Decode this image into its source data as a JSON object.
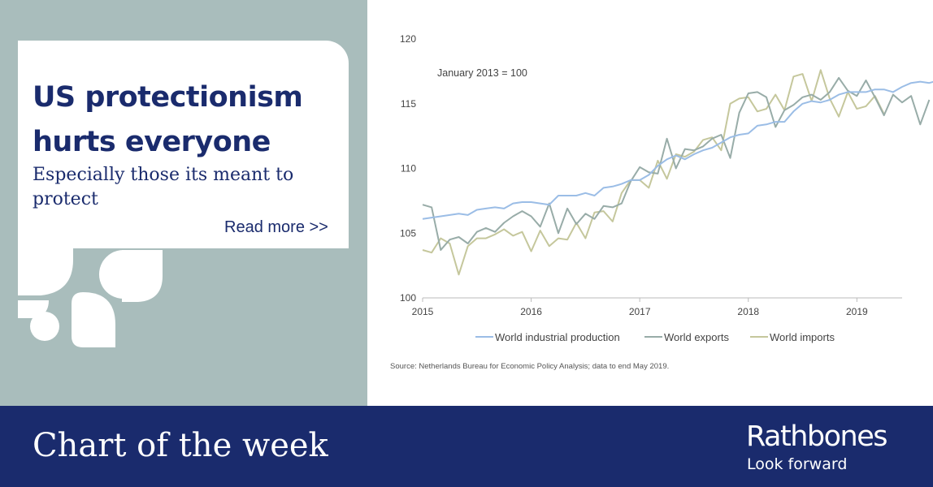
{
  "headline": "US protectionism hurts everyone",
  "subhead": "Especially those its meant to protect",
  "read_more": "Read more >>",
  "footer": {
    "title": "Chart of the week",
    "brand": "Rathbones",
    "tagline": "Look forward"
  },
  "source_note": "Source: Netherlands Bureau for Economic Policy Analysis; data to end May 2019.",
  "colors": {
    "navy": "#1a2b6d",
    "panel": "#a9bdbc"
  },
  "chart_data": {
    "type": "line",
    "annotation": "January 2013 = 100",
    "x_start": "2015-01",
    "x_end": "2019-05",
    "xlim": [
      "2015-01",
      "2019-06"
    ],
    "x_ticks": [
      "2015",
      "2016",
      "2017",
      "2018",
      "2019"
    ],
    "ylim": [
      100,
      120
    ],
    "y_ticks": [
      "100",
      "105",
      "110",
      "115",
      "120"
    ],
    "grid": false,
    "legend_position": "bottom",
    "series": [
      {
        "name": "World industrial production",
        "color": "#9bbde6",
        "values": [
          106.1,
          106.2,
          106.3,
          106.4,
          106.5,
          106.4,
          106.8,
          106.9,
          107.0,
          106.9,
          107.3,
          107.4,
          107.4,
          107.3,
          107.2,
          107.9,
          107.9,
          107.9,
          108.1,
          107.9,
          108.5,
          108.6,
          108.8,
          109.1,
          109.1,
          109.5,
          110.2,
          110.7,
          111.0,
          110.7,
          111.1,
          111.4,
          111.6,
          112.0,
          112.4,
          112.6,
          112.7,
          113.3,
          113.4,
          113.6,
          113.6,
          114.4,
          115.0,
          115.2,
          115.1,
          115.3,
          115.7,
          115.9,
          115.9,
          115.9,
          116.1,
          116.1,
          115.9,
          116.3,
          116.6,
          116.7,
          116.6,
          116.8,
          116.9,
          116.8,
          116.8,
          116.8,
          117.9,
          117.3,
          117.5
        ]
      },
      {
        "name": "World exports",
        "color": "#98aca8",
        "values": [
          107.2,
          107.0,
          103.7,
          104.5,
          104.7,
          104.2,
          105.1,
          105.4,
          105.1,
          105.8,
          106.3,
          106.7,
          106.3,
          105.5,
          107.3,
          105.0,
          106.9,
          105.7,
          106.5,
          106.1,
          107.1,
          107.0,
          107.3,
          109.0,
          110.1,
          109.7,
          109.6,
          112.3,
          110.0,
          111.5,
          111.4,
          111.7,
          112.3,
          112.6,
          110.8,
          114.3,
          115.8,
          115.9,
          115.5,
          113.2,
          114.5,
          114.9,
          115.5,
          115.7,
          115.3,
          115.9,
          117.0,
          116.0,
          115.6,
          116.8,
          115.5,
          114.1,
          115.7,
          115.1,
          115.6,
          113.4,
          115.3
        ]
      },
      {
        "name": "World imports",
        "color": "#c5c79c",
        "values": [
          103.7,
          103.5,
          104.6,
          104.2,
          101.8,
          104.0,
          104.6,
          104.6,
          104.9,
          105.3,
          104.8,
          105.1,
          103.6,
          105.2,
          104.0,
          104.6,
          104.5,
          105.8,
          104.6,
          106.6,
          106.7,
          105.9,
          108.1,
          109.1,
          109.1,
          108.5,
          110.6,
          109.2,
          111.1,
          110.9,
          111.3,
          112.2,
          112.4,
          111.4,
          115.0,
          115.4,
          115.5,
          114.4,
          114.6,
          115.7,
          114.5,
          117.1,
          117.3,
          115.2,
          117.6,
          115.4,
          114.0,
          115.9,
          114.6,
          114.8,
          115.6,
          114.2
        ]
      }
    ]
  }
}
